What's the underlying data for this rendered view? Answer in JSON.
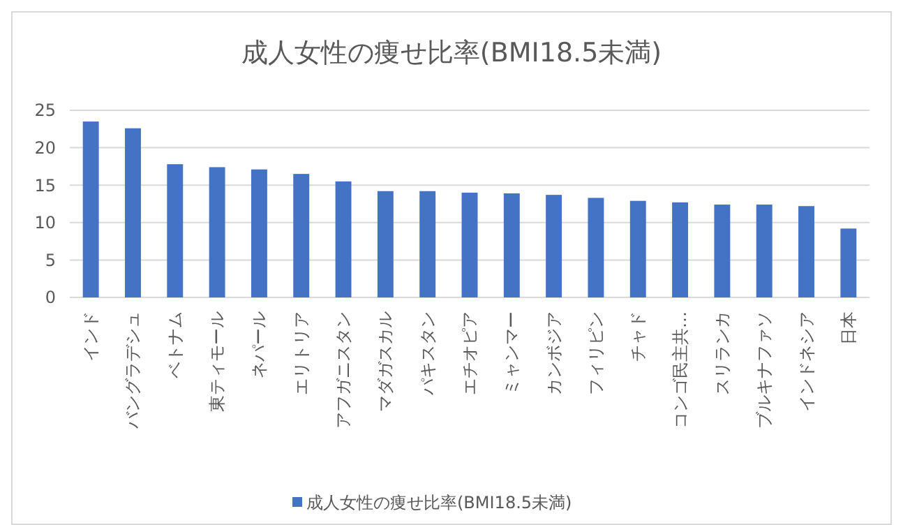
{
  "chart_data": {
    "type": "bar",
    "title": "成人女性の痩せ比率(BMI18.5未満)",
    "categories": [
      "インド",
      "バングラデシュ",
      "ベトナム",
      "東ティモール",
      "ネパール",
      "エリトリア",
      "アフガニスタン",
      "マダガスカル",
      "パキスタン",
      "エチオピア",
      "ミャンマー",
      "カンボジア",
      "フィリピン",
      "チャド",
      "コンゴ民主共…",
      "スリランカ",
      "ブルキナファソ",
      "インドネシア",
      "日本"
    ],
    "series": [
      {
        "name": "成人女性の痩せ比率(BMI18.5未満)",
        "color": "#4472c4",
        "values": [
          23.5,
          22.6,
          17.8,
          17.4,
          17.1,
          16.5,
          15.5,
          14.2,
          14.2,
          14.0,
          13.9,
          13.7,
          13.3,
          12.9,
          12.7,
          12.4,
          12.4,
          12.2,
          9.2
        ]
      }
    ],
    "ylim": [
      0,
      25
    ],
    "yticks": [
      0,
      5,
      10,
      15,
      20,
      25
    ],
    "grid": "y",
    "legend": "bottom"
  }
}
